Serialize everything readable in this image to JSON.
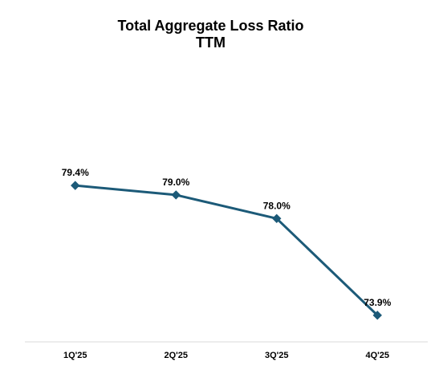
{
  "chart_data": {
    "type": "line",
    "title": "Total Aggregate Loss Ratio",
    "subtitle": "TTM",
    "categories": [
      "1Q'25",
      "2Q'25",
      "3Q'25",
      "4Q'25"
    ],
    "series": [
      {
        "values": [
          79.4,
          79.0,
          78.0,
          73.9
        ],
        "data_labels": [
          "79.4%",
          "79.0%",
          "78.0%",
          "73.9%"
        ],
        "color": "#1c5a78",
        "marker": "diamond"
      }
    ],
    "ylim": [
      72.5,
      82.5
    ],
    "y_axis_visible": false,
    "grid": false,
    "legend": "none"
  }
}
